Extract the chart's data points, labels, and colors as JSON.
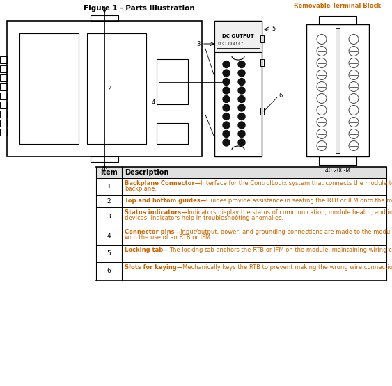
{
  "title": "Figure 1 - Parts Illustration",
  "title_fontsize": 7.5,
  "bg_color": "#ffffff",
  "table_header": [
    "Item",
    "Description"
  ],
  "bold_terms": [
    "Backplane Connector—",
    "Top and bottom guides—",
    "Status indicators—",
    "Connector pins—",
    "Locking tab—",
    "Slots for keying—"
  ],
  "normal_terms": [
    "Interface for the ControlLogix system that connects the module to the backplane.",
    "Guides provide assistance in seating the RTB or IFM onto the module.",
    "Indicators display the status of communication, module health, and input/output devices. Indicators help in troubleshooting anomalies.",
    "Input/output, power, and grounding connections are made to the module through these pins with the use of an RTB or IFM.",
    "The locking tab anchors the RTB or IFM on the module, maintaining wiring connections.",
    "Mechanically keys the RTB to prevent making the wrong wire connections to your module."
  ],
  "text_color": "#cc6600",
  "removable_block_label": "Removable Terminal Block",
  "removable_block_label_color": "#cc6600",
  "figure_number": "40 200-M"
}
